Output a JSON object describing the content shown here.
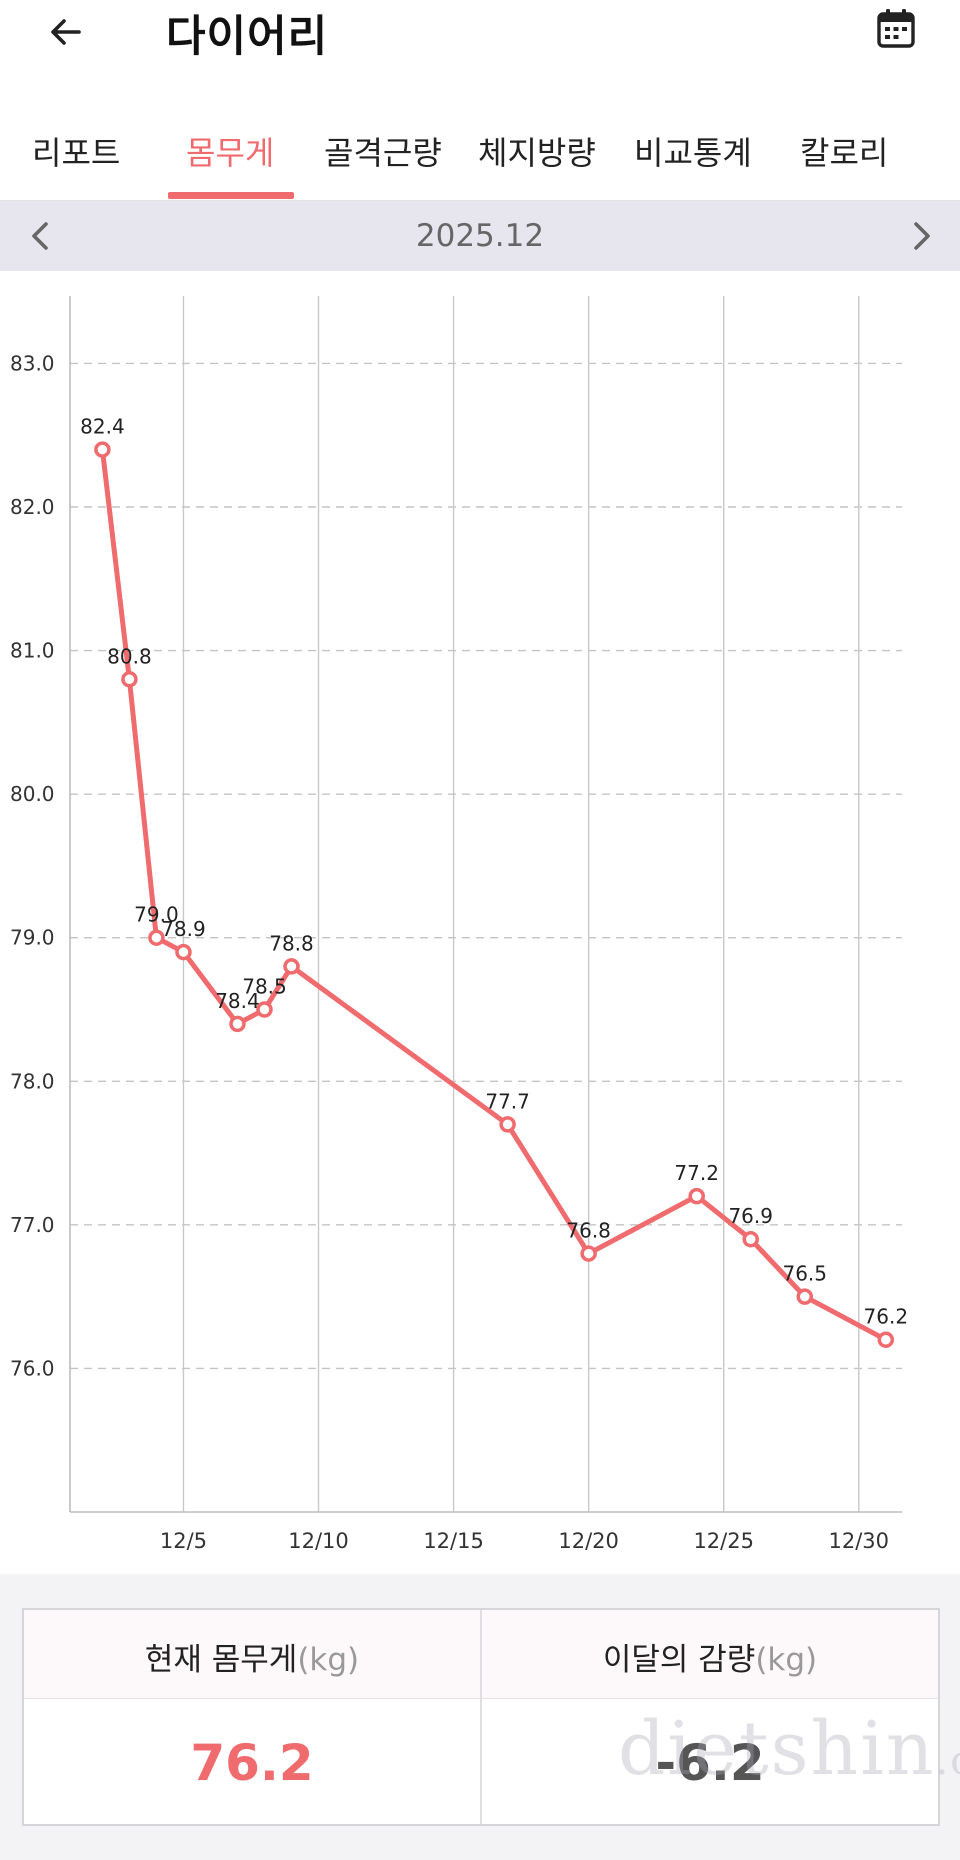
{
  "header": {
    "title": "다이어리",
    "back_icon": "arrow-left-icon",
    "calendar_icon": "calendar-icon"
  },
  "tabs": [
    {
      "label": "리포트",
      "active": false
    },
    {
      "label": "몸무게",
      "active": true
    },
    {
      "label": "골격근량",
      "active": false
    },
    {
      "label": "체지방량",
      "active": false
    },
    {
      "label": "비교통계",
      "active": false
    },
    {
      "label": "칼로리",
      "active": false
    }
  ],
  "month_nav": {
    "label": "2025.12",
    "prev_icon": "chevron-left-icon",
    "next_icon": "chevron-right-icon"
  },
  "colors": {
    "accent": "#ef6b6e",
    "month_bar_bg": "#e7e6ef"
  },
  "chart_data": {
    "type": "line",
    "title": "",
    "xlabel": "",
    "ylabel": "",
    "x_ticks": [
      "12/5",
      "12/10",
      "12/15",
      "12/20",
      "12/25",
      "12/30"
    ],
    "y_ticks": [
      "76.0",
      "77.0",
      "78.0",
      "79.0",
      "80.0",
      "81.0",
      "82.0",
      "83.0"
    ],
    "ylim": [
      75.0,
      83.4
    ],
    "xlim_days": [
      0.8,
      31.6
    ],
    "grid": {
      "horizontal": "dashed",
      "vertical": "solid"
    },
    "series": [
      {
        "points": [
          {
            "x": "12/2",
            "day": 2,
            "y": 82.4,
            "label": "82.4"
          },
          {
            "x": "12/3",
            "day": 3,
            "y": 80.8,
            "label": "80.8"
          },
          {
            "x": "12/4",
            "day": 4,
            "y": 79.0,
            "label": "79.0"
          },
          {
            "x": "12/5",
            "day": 5,
            "y": 78.9,
            "label": "78.9"
          },
          {
            "x": "12/7",
            "day": 7,
            "y": 78.4,
            "label": "78.4"
          },
          {
            "x": "12/8",
            "day": 8,
            "y": 78.5,
            "label": "78.5"
          },
          {
            "x": "12/9",
            "day": 9,
            "y": 78.8,
            "label": "78.8"
          },
          {
            "x": "12/17",
            "day": 17,
            "y": 77.7,
            "label": "77.7"
          },
          {
            "x": "12/20",
            "day": 20,
            "y": 76.8,
            "label": "76.8"
          },
          {
            "x": "12/24",
            "day": 24,
            "y": 77.2,
            "label": "77.2"
          },
          {
            "x": "12/26",
            "day": 26,
            "y": 76.9,
            "label": "76.9"
          },
          {
            "x": "12/28",
            "day": 28,
            "y": 76.5,
            "label": "76.5"
          },
          {
            "x": "12/31",
            "day": 31,
            "y": 76.2,
            "label": "76.2"
          }
        ]
      }
    ]
  },
  "summary": {
    "current_label": "현재 몸무게",
    "current_unit": "(kg)",
    "current_value": "76.2",
    "loss_label": "이달의 감량",
    "loss_unit": "(kg)",
    "loss_value": "-6.2"
  },
  "watermark": {
    "text": "dietshin",
    "suffix": ".com"
  }
}
